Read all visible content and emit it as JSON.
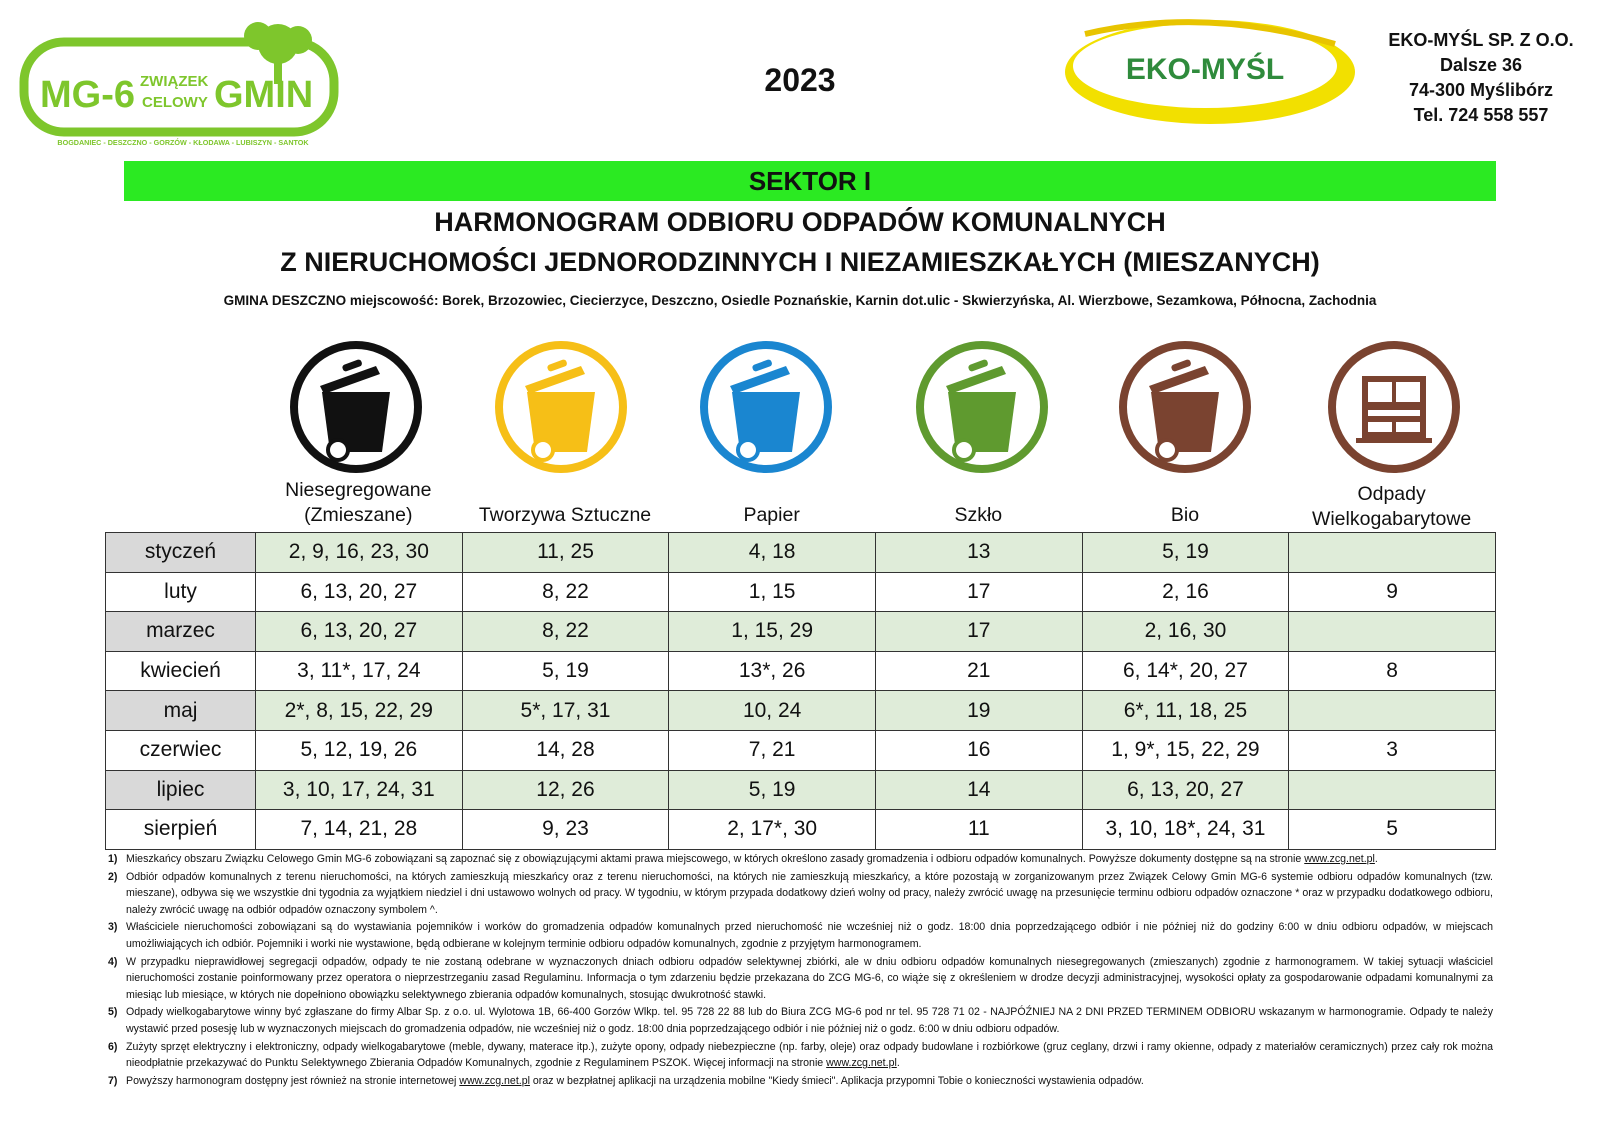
{
  "header": {
    "mg6_logo": {
      "main_text": "MG-6",
      "middle_text_1": "ZWIĄZEK",
      "middle_text_2": "CELOWY",
      "right_text": "GMIN",
      "sub_text": "BOGDANIEC - DESZCZNO - GORZÓW - KŁODAWA - LUBISZYN - SANTOK"
    },
    "year": "2023",
    "eko_logo_text": "EKO-MYŚL",
    "company": {
      "name": "EKO-MYŚL SP. Z O.O.",
      "street": "Dalsze 36",
      "city": "74-300 Myślibórz",
      "phone": "Tel. 724 558 557"
    }
  },
  "sector": "SEKTOR I",
  "title_line1": "HARMONOGRAM ODBIORU ODPADÓW KOMUNALNYCH",
  "title_line2": "Z NIERUCHOMOŚCI JEDNORODZINNYCH I NIEZAMIESZKAŁYCH (MIESZANYCH)",
  "gmina_line": "GMINA DESZCZNO miejscowość: Borek, Brzozowiec, Ciecierzyce, Deszczno, Osiedle Poznańskie, Karnin dot.ulic - Skwierzyńska, Al. Wierzbowe, Sezamkowa, Północna, Zachodnia",
  "colors": {
    "sector_green": "#2bea22",
    "mixed": "#111111",
    "plastic": "#f6bf17",
    "paper": "#1a86d0",
    "glass": "#5f9a2f",
    "bio": "#7a4330",
    "bulky": "#7a4330",
    "row_shade": "#dfecd9",
    "month_shade": "#d9d9d9"
  },
  "columns": [
    {
      "line1": "Niesegregowane",
      "line2": "(Zmieszane)",
      "icon": "black-bin-icon"
    },
    {
      "line1": "Tworzywa Sztuczne",
      "line2": "",
      "icon": "yellow-bin-icon"
    },
    {
      "line1": "Papier",
      "line2": "",
      "icon": "blue-bin-icon"
    },
    {
      "line1": "Szkło",
      "line2": "",
      "icon": "green-bin-icon"
    },
    {
      "line1": "Bio",
      "line2": "",
      "icon": "brown-bin-icon"
    },
    {
      "line1": "Odpady",
      "line2": "Wielkogabarytowe",
      "icon": "furniture-icon"
    }
  ],
  "rows": [
    {
      "month": "styczeń",
      "cells": [
        "2, 9, 16, 23, 30",
        "11, 25",
        "4, 18",
        "13",
        "5, 19",
        ""
      ]
    },
    {
      "month": "luty",
      "cells": [
        "6, 13, 20, 27",
        "8, 22",
        "1, 15",
        "17",
        "2, 16",
        "9"
      ]
    },
    {
      "month": "marzec",
      "cells": [
        "6, 13, 20, 27",
        "8, 22",
        "1, 15, 29",
        "17",
        "2, 16, 30",
        ""
      ]
    },
    {
      "month": "kwiecień",
      "cells": [
        "3, 11*, 17, 24",
        "5, 19",
        "13*, 26",
        "21",
        "6, 14*, 20, 27",
        "8"
      ]
    },
    {
      "month": "maj",
      "cells": [
        "2*, 8, 15, 22, 29",
        "5*, 17, 31",
        "10, 24",
        "19",
        "6*, 11, 18, 25",
        ""
      ]
    },
    {
      "month": "czerwiec",
      "cells": [
        "5, 12, 19, 26",
        "14, 28",
        "7, 21",
        "16",
        "1, 9*, 15, 22, 29",
        "3"
      ]
    },
    {
      "month": "lipiec",
      "cells": [
        "3, 10, 17, 24, 31",
        "12, 26",
        "5, 19",
        "14",
        "6, 13, 20, 27",
        ""
      ]
    },
    {
      "month": "sierpień",
      "cells": [
        "7, 14, 21, 28",
        "9, 23",
        "2, 17*, 30",
        "11",
        "3, 10, 18*, 24, 31",
        "5"
      ]
    }
  ],
  "notes": [
    {
      "num": "1)",
      "text": "Mieszkańcy obszaru Związku Celowego Gmin MG-6 zobowiązani są zapoznać się z obowiązującymi aktami prawa miejscowego, w których określono zasady gromadzenia i odbioru odpadów komunalnych. Powyższe dokumenty dostępne są na stronie",
      "link": "www.zcg.net.pl",
      "tail": "."
    },
    {
      "num": "2)",
      "text": "Odbiór odpadów komunalnych z terenu nieruchomości, na których zamieszkują mieszkańcy oraz z terenu nieruchomości, na których nie zamieszkują mieszkańcy, a które pozostają w zorganizowanym przez Związek Celowy Gmin MG-6 systemie odbioru odpadów komunalnych (tzw. mieszane), odbywa się we wszystkie dni tygodnia za wyjątkiem niedziel i dni ustawowo wolnych od pracy. W tygodniu, w którym przypada dodatkowy dzień wolny od pracy, należy zwrócić uwagę na przesunięcie terminu odbioru odpadów oznaczone * oraz w przypadku dodatkowego odbioru, należy zwrócić uwagę na odbiór odpadów oznaczony symbolem ^.",
      "link": "",
      "tail": ""
    },
    {
      "num": "3)",
      "text": "Właściciele nieruchomości zobowiązani są do wystawiania pojemników i worków do gromadzenia odpadów komunalnych przed nieruchomość nie wcześniej niż o godz. 18:00 dnia poprzedzającego odbiór i nie później niż do godziny 6:00 w dniu odbioru odpadów, w miejscach umożliwiających ich odbiór. Pojemniki i worki nie wystawione, będą odbierane w kolejnym terminie odbioru odpadów komunalnych, zgodnie z przyjętym harmonogramem.",
      "link": "",
      "tail": ""
    },
    {
      "num": "4)",
      "text": "W przypadku nieprawidłowej segregacji odpadów, odpady te nie zostaną odebrane w wyznaczonych dniach odbioru odpadów selektywnej zbiórki, ale w dniu odbioru odpadów komunalnych niesegregowanych (zmieszanych) zgodnie z harmonogramem. W takiej sytuacji właściciel nieruchomości zostanie poinformowany przez operatora o nieprzestrzeganiu zasad Regulaminu. Informacja o tym zdarzeniu będzie przekazana do ZCG MG-6, co wiąże się z określeniem w drodze decyzji administracyjnej, wysokości opłaty za gospodarowanie odpadami komunalnymi za miesiąc lub miesiące, w których nie dopełniono obowiązku selektywnego zbierania odpadów komunalnych, stosując dwukrotność stawki.",
      "link": "",
      "tail": ""
    },
    {
      "num": "5)",
      "text": "Odpady wielkogabarytowe winny być zgłaszane do firmy Albar Sp. z o.o. ul. Wylotowa 1B, 66-400 Gorzów Wlkp. tel. 95 728 22 88 lub do Biura ZCG MG-6 pod nr tel. 95 728 71 02 - NAJPÓŹNIEJ NA 2 DNI PRZED TERMINEM ODBIORU wskazanym w harmonogramie. Odpady te należy wystawić przed posesję lub w wyznaczonych miejscach do gromadzenia odpadów, nie wcześniej niż o godz. 18:00 dnia poprzedzającego odbiór i nie później niż o godz. 6:00 w dniu odbioru odpadów.",
      "link": "",
      "tail": ""
    },
    {
      "num": "6)",
      "text": "Zużyty sprzęt elektryczny i elektroniczny, odpady wielkogabarytowe (meble, dywany, materace itp.), zużyte opony, odpady niebezpieczne (np. farby, oleje) oraz odpady budowlane i rozbiórkowe (gruz ceglany, drzwi i ramy okienne, odpady z materiałów ceramicznych) przez cały rok można nieodpłatnie przekazywać do Punktu Selektywnego Zbierania Odpadów Komunalnych, zgodnie z Regulaminem PSZOK. Więcej informacji na stronie",
      "link": "www.zcg.net.pl",
      "tail": "."
    },
    {
      "num": "7)",
      "text": "Powyższy harmonogram dostępny jest również na stronie internetowej",
      "link": "www.zcg.net.pl",
      "tail": "oraz w bezpłatnej aplikacji na urządzenia mobilne \"Kiedy śmieci\". Aplikacja przypomni Tobie o konieczności wystawienia odpadów."
    }
  ]
}
